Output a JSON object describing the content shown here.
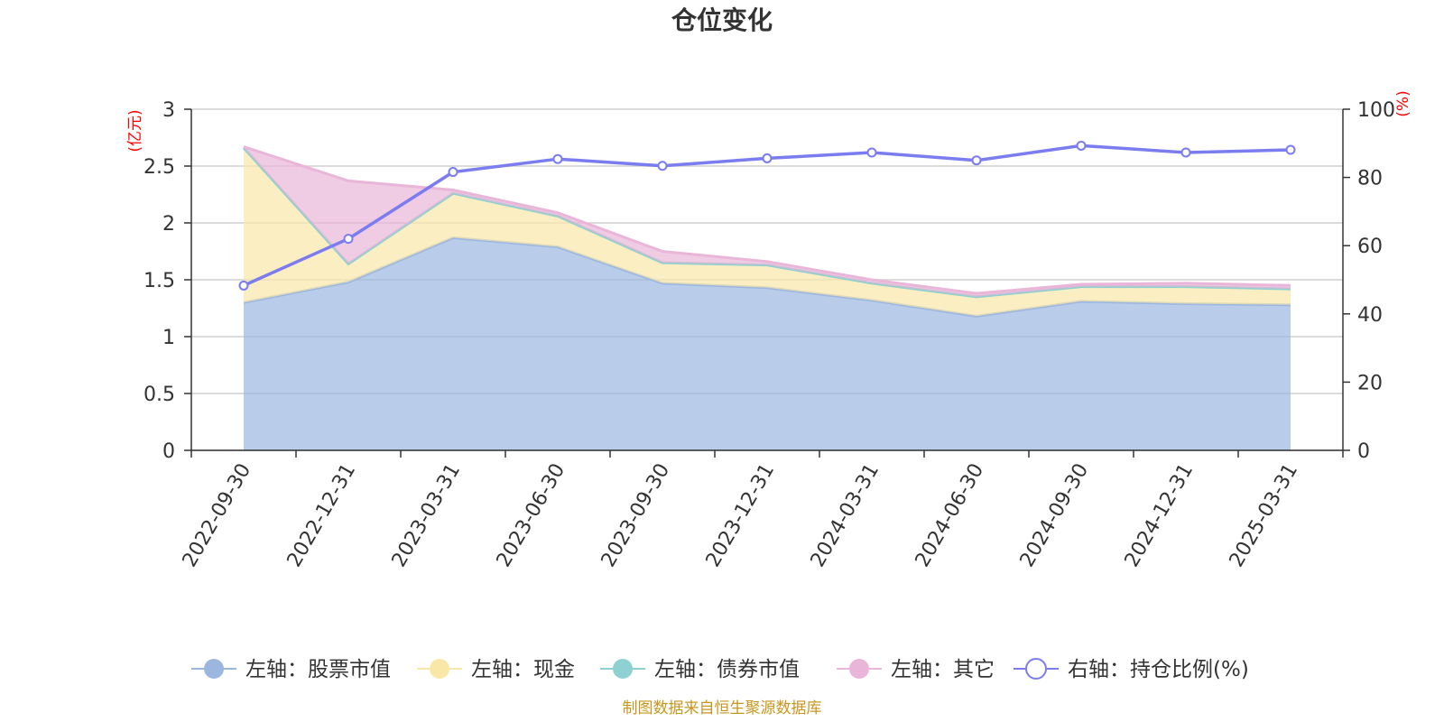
{
  "chart_data": {
    "type": "area",
    "title": "仓位变化",
    "categories": [
      "2022-09-30",
      "2022-12-31",
      "2023-03-31",
      "2023-06-30",
      "2023-09-30",
      "2023-12-31",
      "2024-03-31",
      "2024-06-30",
      "2024-09-30",
      "2024-12-31",
      "2025-03-31"
    ],
    "left_axis": {
      "unit": "(亿元)",
      "ylim": [
        0,
        3
      ],
      "ticks": [
        "0",
        "0.5",
        "1",
        "1.5",
        "2",
        "2.5",
        "3"
      ]
    },
    "right_axis": {
      "unit": "(%)",
      "ylim": [
        0,
        100
      ],
      "ticks": [
        "0",
        "20",
        "40",
        "60",
        "80",
        "100"
      ]
    },
    "series": [
      {
        "name": "左轴：股票市值",
        "axis": "left",
        "stack": true,
        "color": "#9bb7e0",
        "values": [
          1.3,
          1.48,
          1.87,
          1.79,
          1.47,
          1.43,
          1.32,
          1.18,
          1.31,
          1.29,
          1.28
        ]
      },
      {
        "name": "左轴：现金",
        "axis": "left",
        "stack": true,
        "color": "#f9e7a8",
        "values": [
          1.36,
          0.16,
          0.39,
          0.27,
          0.18,
          0.2,
          0.15,
          0.17,
          0.13,
          0.15,
          0.14
        ]
      },
      {
        "name": "左轴：债券市值",
        "axis": "left",
        "stack": true,
        "color": "#8fd0d0",
        "values": [
          0,
          0,
          0,
          0,
          0,
          0,
          0,
          0,
          0,
          0,
          0
        ]
      },
      {
        "name": "左轴：其它",
        "axis": "left",
        "stack": true,
        "color": "#e9b5d8",
        "values": [
          0.01,
          0.73,
          0.03,
          0.03,
          0.1,
          0.03,
          0.03,
          0.03,
          0.02,
          0.03,
          0.03
        ]
      },
      {
        "name": "右轴：持仓比例(%)",
        "axis": "right",
        "type": "line",
        "color": "#7b7cef",
        "values": [
          48.3,
          62.0,
          81.6,
          85.4,
          83.4,
          85.6,
          87.3,
          85.0,
          89.3,
          87.3,
          88.1
        ]
      }
    ],
    "grid": true,
    "legend": "bottom"
  },
  "footer": {
    "source": "制图数据来自恒生聚源数据库"
  }
}
